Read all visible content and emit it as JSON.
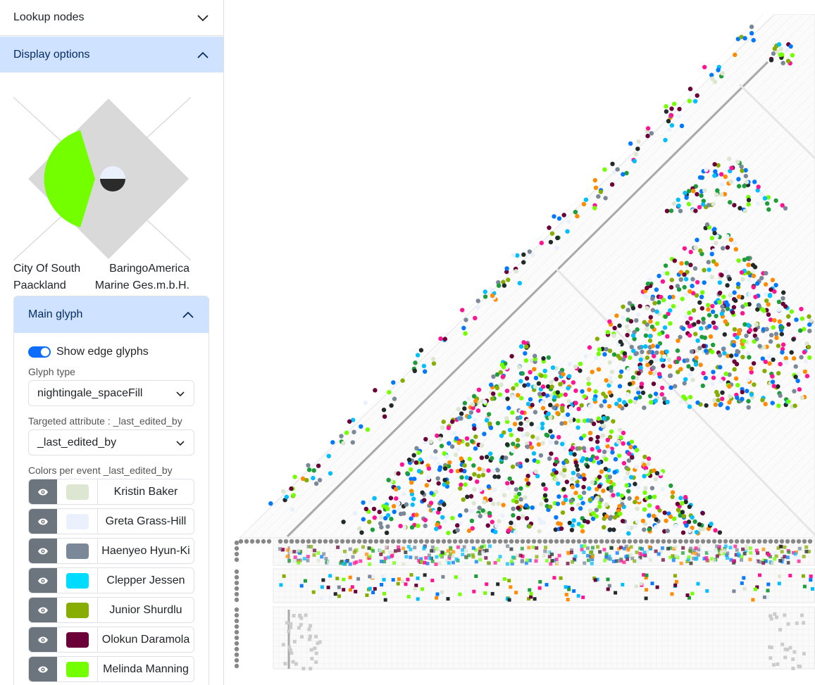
{
  "sidebar": {
    "lookup_title": "Lookup nodes",
    "display_title": "Display options",
    "preview": {
      "left_label": "City Of South Paackland",
      "right_label": "BaringoAmerica Marine Ges.m.b.H."
    },
    "main_glyph": {
      "title": "Main glyph",
      "show_edge_glyphs_label": "Show edge glyphs",
      "show_edge_glyphs": true,
      "glyph_type_label": "Glyph type",
      "glyph_type_value": "nightingale_spaceFill",
      "targeted_attr_label": "Targeted attribute : _last_edited_by",
      "targeted_attr_value": "_last_edited_by",
      "colors_label": "Colors per event _last_edited_by",
      "colors": [
        {
          "name": "Kristin Baker",
          "color": "#dde6d0"
        },
        {
          "name": "Greta Grass-Hill",
          "color": "#eaf1fc"
        },
        {
          "name": "Haenyeo Hyun-Ki",
          "color": "#7a8898"
        },
        {
          "name": "Clepper Jessen",
          "color": "#00dcff"
        },
        {
          "name": "Junior Shurdlu",
          "color": "#86ad00"
        },
        {
          "name": "Olokun Daramola",
          "color": "#6b0038"
        },
        {
          "name": "Melinda Manning",
          "color": "#73ff00"
        }
      ]
    }
  },
  "matrix": {
    "palette": [
      "#dde6d0",
      "#eaf1fc",
      "#7a8898",
      "#00bfff",
      "#86ad00",
      "#6b0038",
      "#73ff00",
      "#ff1493",
      "#1e9e3a",
      "#222a2a",
      "#ff8c00",
      "#0078ff"
    ]
  }
}
